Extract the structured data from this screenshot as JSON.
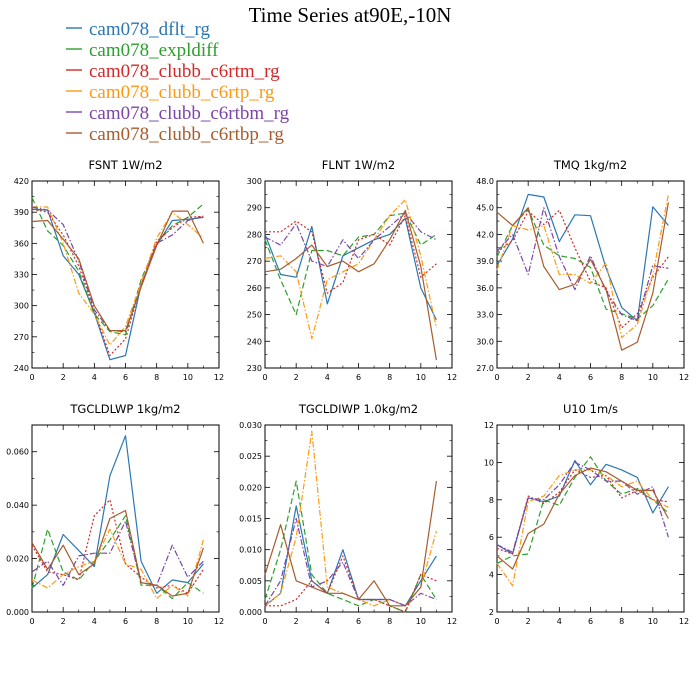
{
  "figure": {
    "title": "Time Series at90E,-10N"
  },
  "legend": [
    {
      "name": "cam078_dflt_rg",
      "color": "#2a77b4",
      "dash": "solid"
    },
    {
      "name": "cam078_expldiff",
      "color": "#2ca02c",
      "dash": "dashed"
    },
    {
      "name": "cam078_clubb_c6rtm_rg",
      "color": "#d62728",
      "dash": "dotted"
    },
    {
      "name": "cam078_clubb_c6rtp_rg",
      "color": "#ff9a10",
      "dash": "dashdot"
    },
    {
      "name": "cam078_clubb_c6rtbm_rg",
      "color": "#7b46a8",
      "dash": "dashdot"
    },
    {
      "name": "cam078_clubb_c6rtbp_rg",
      "color": "#a85c2c",
      "dash": "solid"
    }
  ],
  "chart_data": [
    {
      "type": "line",
      "title": "FSNT 1W/m2",
      "x": [
        0,
        1,
        2,
        3,
        4,
        5,
        6,
        7,
        8,
        9,
        10,
        11
      ],
      "xlim": [
        0,
        12
      ],
      "xticks": [
        0,
        2,
        4,
        6,
        8,
        10,
        12
      ],
      "ylim": [
        240,
        420
      ],
      "yticks": [
        240,
        270,
        300,
        330,
        360,
        390,
        420
      ],
      "ytick_labels": [
        "240",
        "270",
        "300",
        "330",
        "360",
        "390",
        "420"
      ],
      "series": [
        {
          "name": "cam078_dflt_rg",
          "values": [
            393,
            392,
            348,
            330,
            293,
            248,
            252,
            320,
            358,
            382,
            383,
            385
          ]
        },
        {
          "name": "cam078_expldiff",
          "values": [
            404,
            372,
            358,
            333,
            292,
            275,
            272,
            325,
            360,
            377,
            385,
            398
          ]
        },
        {
          "name": "cam078_clubb_c6rtm_rg",
          "values": [
            393,
            390,
            368,
            338,
            295,
            252,
            268,
            320,
            362,
            375,
            385,
            386
          ]
        },
        {
          "name": "cam078_clubb_c6rtp_rg",
          "values": [
            395,
            395,
            360,
            312,
            292,
            262,
            280,
            322,
            365,
            390,
            378,
            365
          ]
        },
        {
          "name": "cam078_clubb_c6rtbm_rg",
          "values": [
            395,
            392,
            378,
            343,
            296,
            276,
            275,
            318,
            360,
            368,
            382,
            386
          ]
        },
        {
          "name": "cam078_clubb_c6rtbp_rg",
          "values": [
            381,
            382,
            364,
            345,
            300,
            276,
            276,
            318,
            358,
            391,
            391,
            360
          ]
        }
      ]
    },
    {
      "type": "line",
      "title": "FLNT 1W/m2",
      "x": [
        0,
        1,
        2,
        3,
        4,
        5,
        6,
        7,
        8,
        9,
        10,
        11
      ],
      "xlim": [
        0,
        12
      ],
      "xticks": [
        0,
        2,
        4,
        6,
        8,
        10,
        12
      ],
      "ylim": [
        230,
        300
      ],
      "yticks": [
        230,
        240,
        250,
        260,
        270,
        280,
        290,
        300
      ],
      "ytick_labels": [
        "230",
        "240",
        "250",
        "260",
        "270",
        "280",
        "290",
        "300"
      ],
      "series": [
        {
          "name": "cam078_dflt_rg",
          "values": [
            280,
            265,
            264,
            283,
            254,
            272,
            275,
            278,
            280,
            286,
            260,
            248
          ]
        },
        {
          "name": "cam078_expldiff",
          "values": [
            278,
            263,
            250,
            274,
            274,
            272,
            279,
            280,
            287,
            288,
            276,
            280
          ]
        },
        {
          "name": "cam078_clubb_c6rtm_rg",
          "values": [
            281,
            281,
            285,
            281,
            258,
            262,
            278,
            280,
            276,
            287,
            264,
            269
          ]
        },
        {
          "name": "cam078_clubb_c6rtp_rg",
          "values": [
            271,
            272,
            266,
            241,
            263,
            266,
            269,
            278,
            287,
            293,
            272,
            245
          ]
        },
        {
          "name": "cam078_clubb_c6rtbm_rg",
          "values": [
            279,
            276,
            284,
            270,
            268,
            278,
            271,
            278,
            283,
            288,
            281,
            278
          ]
        },
        {
          "name": "cam078_clubb_c6rtbp_rg",
          "values": [
            266,
            267,
            271,
            276,
            268,
            270,
            266,
            269,
            278,
            289,
            268,
            233
          ]
        }
      ]
    },
    {
      "type": "line",
      "title": "TMQ 1kg/m2",
      "x": [
        0,
        1,
        2,
        3,
        4,
        5,
        6,
        7,
        8,
        9,
        10,
        11
      ],
      "xlim": [
        0,
        12
      ],
      "xticks": [
        0,
        2,
        4,
        6,
        8,
        10,
        12
      ],
      "ylim": [
        27.0,
        48.0
      ],
      "yticks": [
        27,
        30,
        33,
        36,
        39,
        42,
        45,
        48
      ],
      "ytick_labels": [
        "27.0",
        "30.0",
        "33.0",
        "36.0",
        "39.0",
        "42.0",
        "45.0",
        "48.0"
      ],
      "series": [
        {
          "name": "cam078_dflt_rg",
          "values": [
            38.5,
            41.5,
            46.5,
            46.2,
            41.2,
            44.2,
            44.1,
            38.2,
            33.8,
            32.3,
            45.1,
            43.0
          ]
        },
        {
          "name": "cam078_expldiff",
          "values": [
            39.5,
            43.0,
            44.8,
            40.8,
            39.6,
            39.3,
            38.3,
            33.6,
            33.1,
            32.5,
            34.0,
            37.0
          ]
        },
        {
          "name": "cam078_clubb_c6rtm_rg",
          "values": [
            40.0,
            41.3,
            44.6,
            43.1,
            44.7,
            40.5,
            36.7,
            36.0,
            31.5,
            33.1,
            37.2,
            39.5
          ]
        },
        {
          "name": "cam078_clubb_c6rtp_rg",
          "values": [
            38.0,
            43.0,
            42.5,
            43.0,
            37.5,
            37.5,
            36.5,
            38.8,
            30.4,
            31.9,
            37.5,
            46.5
          ]
        },
        {
          "name": "cam078_clubb_c6rtbm_rg",
          "values": [
            40.1,
            42.0,
            37.5,
            45.0,
            39.5,
            35.8,
            39.6,
            35.6,
            33.0,
            32.3,
            38.5,
            38.2
          ]
        },
        {
          "name": "cam078_clubb_c6rtbp_rg",
          "values": [
            44.5,
            43.0,
            45.0,
            38.4,
            35.8,
            36.4,
            39.2,
            35.8,
            29.0,
            29.9,
            35.4,
            45.6
          ]
        }
      ]
    },
    {
      "type": "line",
      "title": "TGCLDLWP 1kg/m2",
      "x": [
        0,
        1,
        2,
        3,
        4,
        5,
        6,
        7,
        8,
        9,
        10,
        11
      ],
      "xlim": [
        0,
        12
      ],
      "xticks": [
        0,
        2,
        4,
        6,
        8,
        10,
        12
      ],
      "ylim": [
        0.0,
        0.07
      ],
      "yticks": [
        0.0,
        0.02,
        0.04,
        0.06
      ],
      "ytick_labels": [
        "0.000",
        "0.020",
        "0.040",
        "0.060"
      ],
      "series": [
        {
          "name": "cam078_dflt_rg",
          "values": [
            0.009,
            0.014,
            0.029,
            0.023,
            0.017,
            0.051,
            0.066,
            0.019,
            0.007,
            0.012,
            0.011,
            0.018
          ]
        },
        {
          "name": "cam078_expldiff",
          "values": [
            0.009,
            0.031,
            0.015,
            0.012,
            0.019,
            0.027,
            0.036,
            0.01,
            0.01,
            0.005,
            0.011,
            0.007
          ]
        },
        {
          "name": "cam078_clubb_c6rtm_rg",
          "values": [
            0.025,
            0.015,
            0.014,
            0.012,
            0.036,
            0.042,
            0.018,
            0.013,
            0.009,
            0.01,
            0.007,
            0.016
          ]
        },
        {
          "name": "cam078_clubb_c6rtp_rg",
          "values": [
            0.012,
            0.009,
            0.014,
            0.017,
            0.019,
            0.031,
            0.018,
            0.016,
            0.005,
            0.01,
            0.006,
            0.027
          ]
        },
        {
          "name": "cam078_clubb_c6rtbm_rg",
          "values": [
            0.015,
            0.019,
            0.01,
            0.021,
            0.022,
            0.022,
            0.034,
            0.011,
            0.01,
            0.025,
            0.013,
            0.019
          ]
        },
        {
          "name": "cam078_clubb_c6rtbp_rg",
          "values": [
            0.026,
            0.016,
            0.025,
            0.014,
            0.018,
            0.035,
            0.038,
            0.011,
            0.01,
            0.006,
            0.007,
            0.024
          ]
        }
      ]
    },
    {
      "type": "line",
      "title": "TGCLDIWP 1.0kg/m2",
      "x": [
        0,
        1,
        2,
        3,
        4,
        5,
        6,
        7,
        8,
        9,
        10,
        11
      ],
      "xlim": [
        0,
        12
      ],
      "xticks": [
        0,
        2,
        4,
        6,
        8,
        10,
        12
      ],
      "ylim": [
        0.0,
        0.03
      ],
      "yticks": [
        0.0,
        0.005,
        0.01,
        0.015,
        0.02,
        0.025,
        0.03
      ],
      "ytick_labels": [
        "0.000",
        "0.005",
        "0.010",
        "0.015",
        "0.020",
        "0.025",
        "0.030"
      ],
      "series": [
        {
          "name": "cam078_dflt_rg",
          "values": [
            0.001,
            0.003,
            0.017,
            0.005,
            0.003,
            0.01,
            0.002,
            0.002,
            0.002,
            0.001,
            0.005,
            0.009
          ]
        },
        {
          "name": "cam078_expldiff",
          "values": [
            0.002,
            0.01,
            0.021,
            0.006,
            0.003,
            0.002,
            0.001,
            0.002,
            0.001,
            0.0,
            0.006,
            0.002
          ]
        },
        {
          "name": "cam078_clubb_c6rtm_rg",
          "values": [
            0.001,
            0.001,
            0.002,
            0.005,
            0.003,
            0.009,
            0.002,
            0.002,
            0.001,
            0.0,
            0.006,
            0.005
          ]
        },
        {
          "name": "cam078_clubb_c6rtp_rg",
          "values": [
            0.001,
            0.003,
            0.012,
            0.029,
            0.004,
            0.003,
            0.002,
            0.001,
            0.002,
            0.001,
            0.004,
            0.013
          ]
        },
        {
          "name": "cam078_clubb_c6rtbm_rg",
          "values": [
            0.001,
            0.005,
            0.015,
            0.004,
            0.005,
            0.008,
            0.002,
            0.002,
            0.002,
            0.001,
            0.003,
            0.002
          ]
        },
        {
          "name": "cam078_clubb_c6rtbp_rg",
          "values": [
            0.006,
            0.014,
            0.005,
            0.004,
            0.003,
            0.003,
            0.002,
            0.005,
            0.001,
            0.001,
            0.004,
            0.021
          ]
        }
      ]
    },
    {
      "type": "line",
      "title": "U10 1m/s",
      "x": [
        0,
        1,
        2,
        3,
        4,
        5,
        6,
        7,
        8,
        9,
        10,
        11
      ],
      "xlim": [
        0,
        12
      ],
      "xticks": [
        0,
        2,
        4,
        6,
        8,
        10,
        12
      ],
      "ylim": [
        2,
        12
      ],
      "yticks": [
        2,
        4,
        6,
        8,
        10,
        12
      ],
      "ytick_labels": [
        "2",
        "4",
        "6",
        "8",
        "10",
        "12"
      ],
      "series": [
        {
          "name": "cam078_dflt_rg",
          "values": [
            5.6,
            5.1,
            8.1,
            7.9,
            8.2,
            10.1,
            8.8,
            9.9,
            9.6,
            9.2,
            7.3,
            8.7
          ]
        },
        {
          "name": "cam078_expldiff",
          "values": [
            4.6,
            5.0,
            5.1,
            8.0,
            7.7,
            9.2,
            10.3,
            9.0,
            8.3,
            8.6,
            8.0,
            7.3
          ]
        },
        {
          "name": "cam078_clubb_c6rtm_rg",
          "values": [
            5.4,
            5.1,
            8.2,
            7.8,
            8.4,
            9.6,
            9.2,
            9.3,
            8.1,
            8.5,
            8.0,
            7.9
          ]
        },
        {
          "name": "cam078_clubb_c6rtp_rg",
          "values": [
            4.6,
            3.4,
            7.9,
            8.2,
            9.3,
            9.6,
            9.6,
            9.3,
            8.7,
            9.0,
            8.0,
            7.6
          ]
        },
        {
          "name": "cam078_clubb_c6rtbm_rg",
          "values": [
            5.6,
            5.2,
            8.1,
            8.0,
            8.8,
            10.0,
            9.6,
            9.0,
            9.0,
            8.3,
            8.7,
            6.0
          ]
        },
        {
          "name": "cam078_clubb_c6rtbp_rg",
          "values": [
            5.0,
            4.3,
            6.2,
            6.7,
            8.3,
            9.3,
            9.7,
            9.5,
            9.0,
            8.5,
            8.5,
            7.0
          ]
        }
      ]
    }
  ]
}
